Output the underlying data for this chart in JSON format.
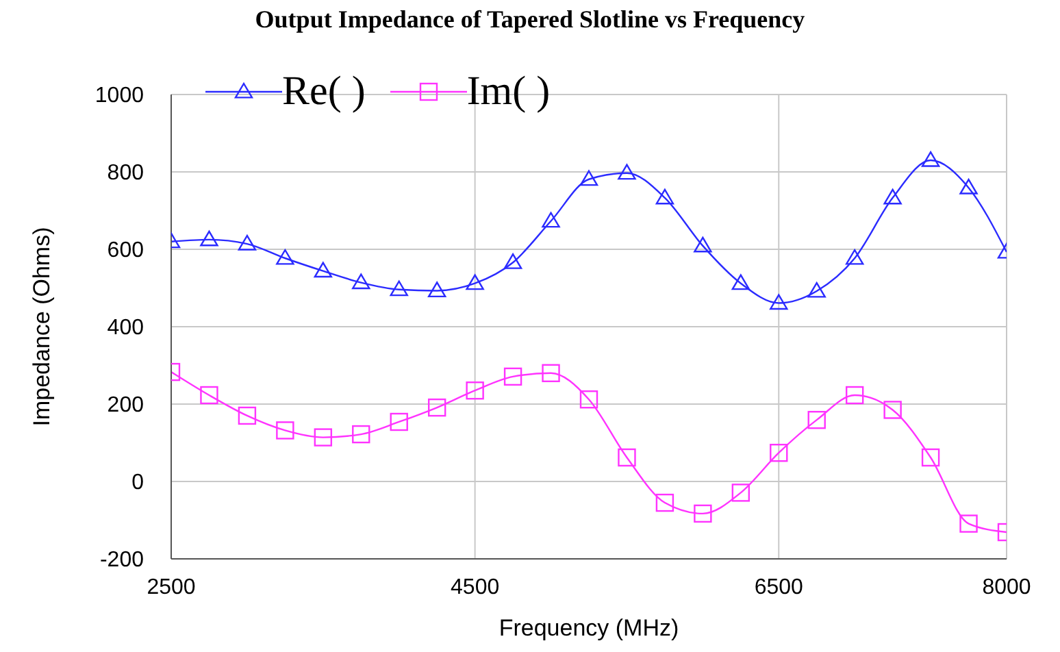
{
  "chart_data": {
    "type": "line",
    "title": "Output Impedance of Tapered Slotline vs Frequency",
    "xlabel": "Frequency (MHz)",
    "ylabel": "Impedance (Ohms)",
    "x": [
      2500,
      2750,
      3000,
      3250,
      3500,
      3750,
      4000,
      4250,
      4500,
      4750,
      5000,
      5250,
      5500,
      5750,
      6000,
      6250,
      6500,
      6750,
      7000,
      7250,
      7500,
      7750,
      8000
    ],
    "series": [
      {
        "name": "Re( )",
        "color": "#2b2bff",
        "marker": "triangle",
        "values": [
          620,
          625,
          614,
          577,
          544,
          514,
          496,
          493,
          512,
          566,
          673,
          781,
          797,
          733,
          609,
          512,
          461,
          492,
          577,
          733,
          830,
          759,
          593
        ]
      },
      {
        "name": "Im( )",
        "color": "#ff33ff",
        "marker": "square",
        "values": [
          283,
          223,
          170,
          132,
          114,
          122,
          154,
          191,
          235,
          271,
          280,
          212,
          62,
          -55,
          -83,
          -29,
          74,
          159,
          223,
          185,
          62,
          -109,
          -131
        ]
      }
    ],
    "xlim": [
      2500,
      8000
    ],
    "xticks": [
      2500,
      4500,
      6500,
      8000
    ],
    "ylim": [
      -200,
      1000
    ],
    "yticks": [
      -200,
      0,
      200,
      400,
      600,
      800,
      1000
    ],
    "grid": true,
    "legend": "top left",
    "line_style": "solid"
  }
}
